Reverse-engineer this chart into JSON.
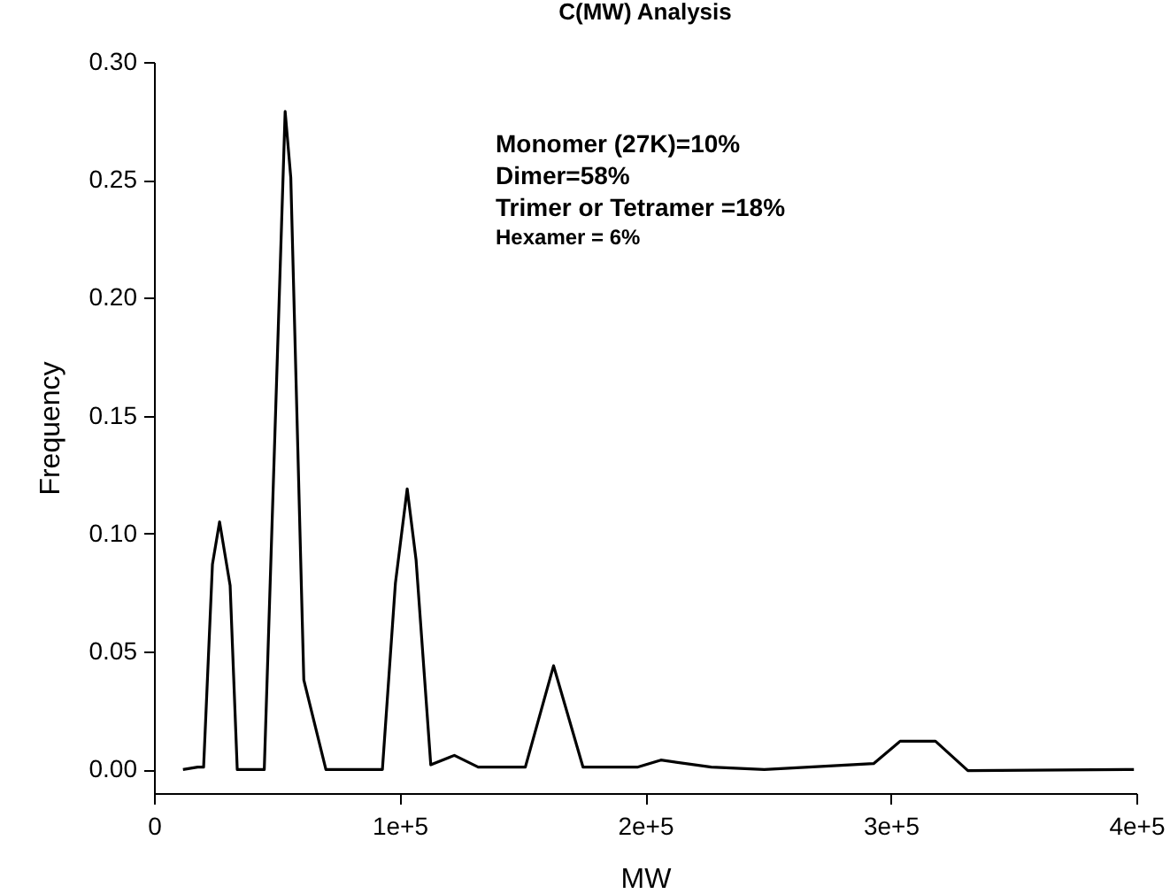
{
  "chart_data": {
    "type": "line",
    "title": "C(MW) Analysis",
    "xlabel": "MW",
    "ylabel": "Frequency",
    "annotations": [
      "Monomer (27K)=10%",
      "Dimer=58%",
      "Trimer or Tetramer =18%",
      "Hexamer = 6%"
    ],
    "series": [
      {
        "color": "#000000",
        "x": [
          11800,
          17800,
          20200,
          23800,
          26700,
          31000,
          33900,
          44900,
          53400,
          55700,
          61000,
          70000,
          93000,
          98300,
          103100,
          106700,
          112700,
          122300,
          132000,
          151200,
          162700,
          174700,
          196800,
          206400,
          226900,
          248500,
          293000,
          303800,
          318200,
          331400,
          399000
        ],
        "values": [
          0,
          0.001,
          0.001,
          0.087,
          0.105,
          0.078,
          0,
          0,
          0.279,
          0.251,
          0.038,
          0,
          0,
          0.079,
          0.119,
          0.089,
          0.002,
          0.006,
          0.001,
          0.001,
          0.044,
          0.001,
          0.001,
          0.004,
          0.001,
          0,
          0.0025,
          0.012,
          0.012,
          -0.0005,
          0
        ]
      }
    ],
    "xlim": [
      0,
      400000
    ],
    "xticks": [
      {
        "value": 0,
        "label": "0"
      },
      {
        "value": 100000,
        "label": "1e+5"
      },
      {
        "value": 200000,
        "label": "2e+5"
      },
      {
        "value": 300000,
        "label": "3e+5"
      },
      {
        "value": 400000,
        "label": "4e+5"
      }
    ],
    "ylim": [
      -0.01,
      0.3
    ],
    "yticks": [
      {
        "value": 0,
        "label": "0.00"
      },
      {
        "value": 0.05,
        "label": "0.05"
      },
      {
        "value": 0.1,
        "label": "0.10"
      },
      {
        "value": 0.15,
        "label": "0.15"
      },
      {
        "value": 0.2,
        "label": "0.20"
      },
      {
        "value": 0.25,
        "label": "0.25"
      },
      {
        "value": 0.3,
        "label": "0.30"
      }
    ],
    "grid": false,
    "marker": "none",
    "line_style": "solid"
  }
}
